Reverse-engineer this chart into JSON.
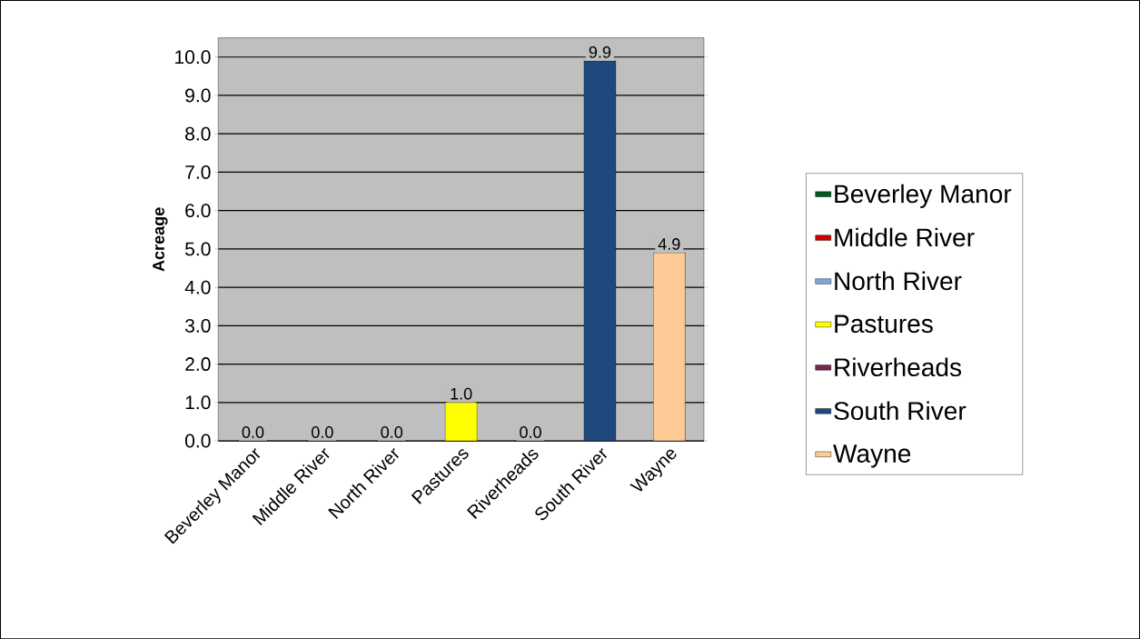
{
  "chart_data": {
    "type": "bar",
    "ylabel": "Acreage",
    "categories": [
      "Beverley Manor",
      "Middle River",
      "North River",
      "Pastures",
      "Riverheads",
      "South River",
      "Wayne"
    ],
    "series": [
      {
        "name": "Beverley Manor",
        "color": "#005a1e",
        "values": [
          0.0,
          null,
          null,
          null,
          null,
          null,
          null
        ],
        "value_labels": [
          "0.0",
          null,
          null,
          null,
          null,
          null,
          null
        ]
      },
      {
        "name": "Middle River",
        "color": "#cc0000",
        "values": [
          null,
          0.0,
          null,
          null,
          null,
          null,
          null
        ],
        "value_labels": [
          null,
          "0.0",
          null,
          null,
          null,
          null,
          null
        ]
      },
      {
        "name": "North River",
        "color": "#7fa7d8",
        "values": [
          null,
          null,
          0.0,
          null,
          null,
          null,
          null
        ],
        "value_labels": [
          null,
          null,
          "0.0",
          null,
          null,
          null,
          null
        ]
      },
      {
        "name": "Pastures",
        "color": "#ffff00",
        "values": [
          null,
          null,
          null,
          1.0,
          null,
          null,
          null
        ],
        "value_labels": [
          null,
          null,
          null,
          "1.0",
          null,
          null,
          null
        ]
      },
      {
        "name": "Riverheads",
        "color": "#77264f",
        "values": [
          null,
          null,
          null,
          null,
          0.0,
          null,
          null
        ],
        "value_labels": [
          null,
          null,
          null,
          null,
          "0.0",
          null,
          null
        ]
      },
      {
        "name": "South River",
        "color": "#1f497d",
        "values": [
          null,
          null,
          null,
          null,
          null,
          9.9,
          null
        ],
        "value_labels": [
          null,
          null,
          null,
          null,
          null,
          "9.9",
          null
        ]
      },
      {
        "name": "Wayne",
        "color": "#fdcb95",
        "values": [
          null,
          null,
          null,
          null,
          null,
          null,
          4.9
        ],
        "value_labels": [
          null,
          null,
          null,
          null,
          null,
          null,
          "4.9"
        ]
      }
    ],
    "ylim": [
      0,
      10.5
    ],
    "yticks": [
      {
        "value": 0,
        "label": "0.0"
      },
      {
        "value": 1,
        "label": "1.0"
      },
      {
        "value": 2,
        "label": "2.0"
      },
      {
        "value": 3,
        "label": "3.0"
      },
      {
        "value": 4,
        "label": "4.0"
      },
      {
        "value": 5,
        "label": "5.0"
      },
      {
        "value": 6,
        "label": "6.0"
      },
      {
        "value": 7,
        "label": "7.0"
      },
      {
        "value": 8,
        "label": "8.0"
      },
      {
        "value": 9,
        "label": "9.0"
      },
      {
        "value": 10,
        "label": "10.0"
      }
    ],
    "grid": "y",
    "legend": "right"
  }
}
